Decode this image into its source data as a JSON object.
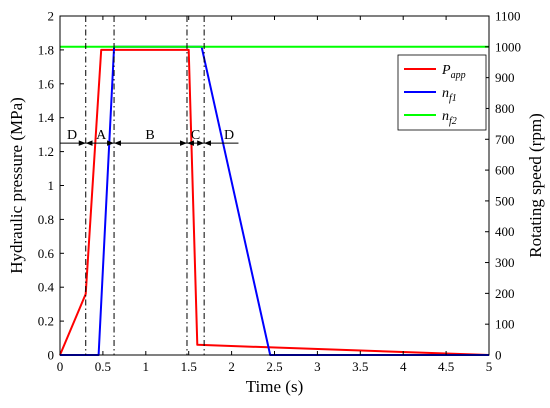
{
  "chart_data": {
    "type": "line",
    "xlabel": "Time (s)",
    "ylabel_left": "Hydraulic pressure (MPa)",
    "ylabel_right": "Rotating speed (rpm)",
    "xlim": [
      0,
      5
    ],
    "ylim_left": [
      0,
      2
    ],
    "ylim_right": [
      0,
      1100
    ],
    "x_ticks": [
      "0",
      "0.5",
      "1",
      "1.5",
      "2",
      "2.5",
      "3",
      "3.5",
      "4",
      "4.5",
      "5"
    ],
    "y_left_ticks": [
      "0",
      "0.2",
      "0.4",
      "0.6",
      "0.8",
      "1",
      "1.2",
      "1.4",
      "1.6",
      "1.8",
      "2"
    ],
    "y_right_ticks": [
      "0",
      "100",
      "200",
      "300",
      "400",
      "500",
      "600",
      "700",
      "800",
      "900",
      "1000",
      "1100"
    ],
    "grid": false,
    "legend_position": "top-right",
    "series": [
      {
        "name": "P",
        "name_sub": "app",
        "axis": "left",
        "color": "#ff0000",
        "x": [
          0,
          0.3,
          0.48,
          1.5,
          1.6,
          5
        ],
        "y": [
          0,
          0.36,
          1.8,
          1.8,
          0.06,
          0
        ]
      },
      {
        "name": "n",
        "name_sub": "f1",
        "axis": "right",
        "color": "#0000ff",
        "x": [
          0,
          0.45,
          0.63,
          1.52,
          1.65,
          2.45,
          5
        ],
        "y": [
          0,
          0,
          1000,
          1000,
          1000,
          0,
          0
        ]
      },
      {
        "name": "n",
        "name_sub": "f2",
        "axis": "right",
        "color": "#00ff00",
        "x": [
          0,
          5
        ],
        "y": [
          1000,
          1000
        ]
      }
    ],
    "phase_lines_x": [
      0.3,
      0.63,
      1.48,
      1.68
    ],
    "phase_arrow_y": 1.25,
    "phase_labels": [
      {
        "label": "D",
        "x": 0.14
      },
      {
        "label": "A",
        "x": 0.48
      },
      {
        "label": "B",
        "x": 1.05
      },
      {
        "label": "C",
        "x": 1.58
      },
      {
        "label": "D",
        "x": 1.97
      }
    ]
  }
}
